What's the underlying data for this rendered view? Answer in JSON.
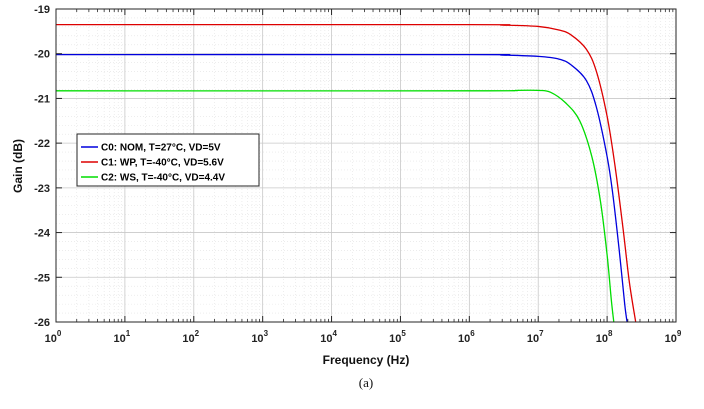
{
  "caption": "(a)",
  "chart_data": {
    "type": "line",
    "title": "",
    "xlabel": "Frequency (Hz)",
    "ylabel": "Gain (dB)",
    "xscale": "log",
    "xlim": [
      1,
      1000000000
    ],
    "ylim": [
      -26,
      -19
    ],
    "grid": true,
    "legend_position": "middle-left",
    "x_ticks": [
      {
        "value": 1,
        "base": "10",
        "exp": "0"
      },
      {
        "value": 10,
        "base": "10",
        "exp": "1"
      },
      {
        "value": 100,
        "base": "10",
        "exp": "2"
      },
      {
        "value": 1000,
        "base": "10",
        "exp": "3"
      },
      {
        "value": 10000,
        "base": "10",
        "exp": "4"
      },
      {
        "value": 100000,
        "base": "10",
        "exp": "5"
      },
      {
        "value": 1000000,
        "base": "10",
        "exp": "6"
      },
      {
        "value": 10000000,
        "base": "10",
        "exp": "7"
      },
      {
        "value": 100000000,
        "base": "10",
        "exp": "8"
      },
      {
        "value": 1000000000,
        "base": "10",
        "exp": "9"
      }
    ],
    "y_ticks": [
      {
        "value": -19,
        "label": "-19"
      },
      {
        "value": -20,
        "label": "-20"
      },
      {
        "value": -21,
        "label": "-21"
      },
      {
        "value": -22,
        "label": "-22"
      },
      {
        "value": -23,
        "label": "-23"
      },
      {
        "value": -24,
        "label": "-24"
      },
      {
        "value": -25,
        "label": "-25"
      },
      {
        "value": -26,
        "label": "-26"
      }
    ],
    "series": [
      {
        "name": "C0: NOM, T=27°C, VD=5V",
        "color": "#0000dd",
        "points": [
          [
            1,
            -20.02
          ],
          [
            1000000,
            -20.02
          ],
          [
            3000000,
            -20.03
          ],
          [
            10000000,
            -20.06
          ],
          [
            20000000,
            -20.12
          ],
          [
            30000000,
            -20.25
          ],
          [
            50000000,
            -20.6
          ],
          [
            70000000,
            -21.2
          ],
          [
            100000000,
            -22.3
          ],
          [
            120000000,
            -23.1
          ],
          [
            150000000,
            -24.4
          ],
          [
            180000000,
            -25.6
          ],
          [
            195000000,
            -26.0
          ]
        ]
      },
      {
        "name": "C1: WP, T=-40°C, VD=5.6V",
        "color": "#dd0000",
        "points": [
          [
            1,
            -19.35
          ],
          [
            1000000,
            -19.35
          ],
          [
            3000000,
            -19.36
          ],
          [
            10000000,
            -19.39
          ],
          [
            20000000,
            -19.47
          ],
          [
            30000000,
            -19.58
          ],
          [
            50000000,
            -19.9
          ],
          [
            70000000,
            -20.4
          ],
          [
            100000000,
            -21.4
          ],
          [
            130000000,
            -22.5
          ],
          [
            170000000,
            -23.9
          ],
          [
            210000000,
            -25.1
          ],
          [
            260000000,
            -26.0
          ]
        ]
      },
      {
        "name": "C2: WS, T=-40°C, VD=4.4V",
        "color": "#00dd00",
        "points": [
          [
            1,
            -20.83
          ],
          [
            1000000,
            -20.83
          ],
          [
            5000000,
            -20.82
          ],
          [
            10000000,
            -20.82
          ],
          [
            15000000,
            -20.86
          ],
          [
            25000000,
            -21.1
          ],
          [
            40000000,
            -21.5
          ],
          [
            60000000,
            -22.3
          ],
          [
            80000000,
            -23.3
          ],
          [
            100000000,
            -24.5
          ],
          [
            115000000,
            -25.5
          ],
          [
            125000000,
            -26.0
          ]
        ]
      }
    ]
  }
}
